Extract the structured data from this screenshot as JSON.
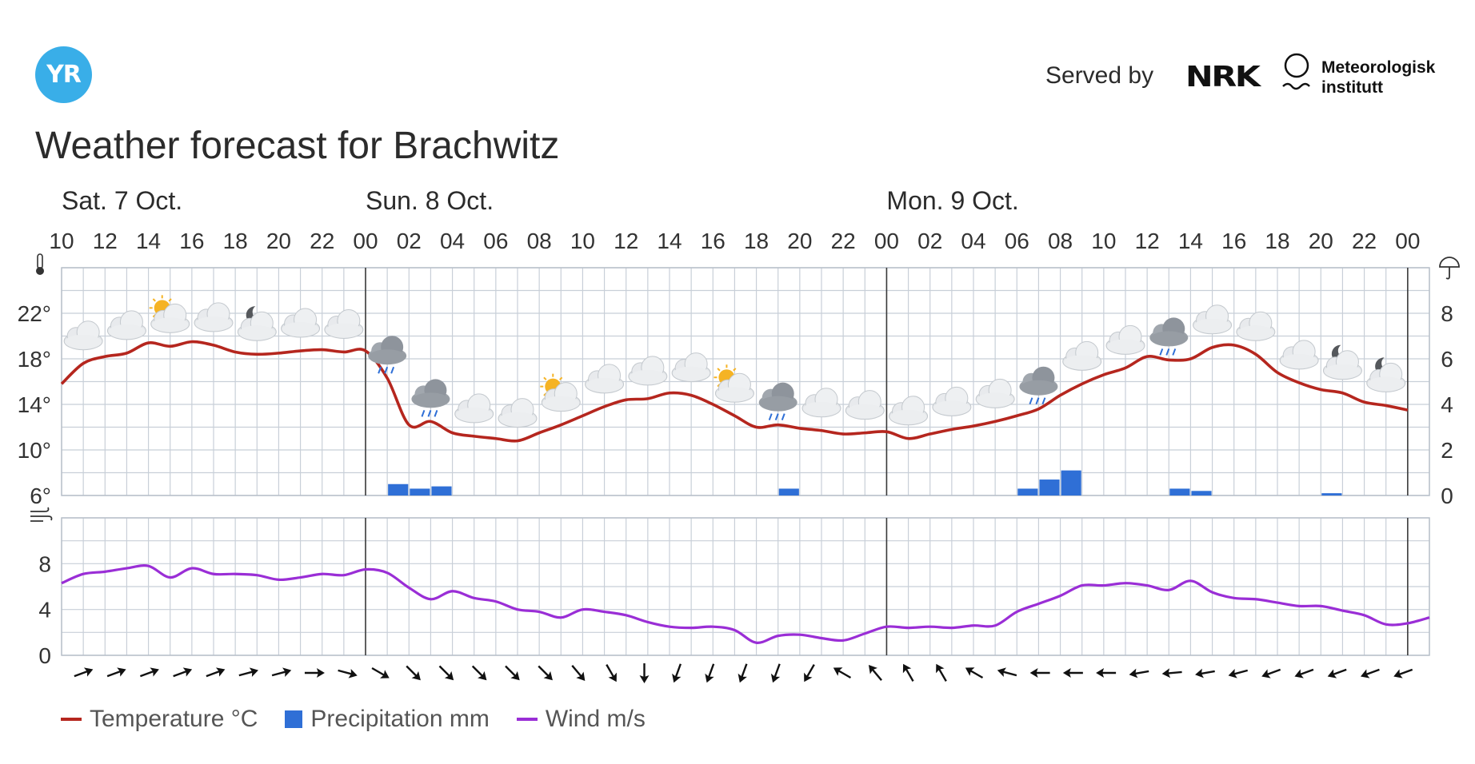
{
  "header": {
    "logo_text": "YR",
    "served_by": "Served by",
    "nrk_text": "NRK",
    "met_line1": "Meteorologisk",
    "met_line2": "institutt"
  },
  "title": "Weather forecast for Brachwitz",
  "colors": {
    "temperature": "#b5261e",
    "precipitation": "#2f6fd6",
    "wind": "#9a2ed6",
    "grid": "#c8cfd8",
    "day_separator": "#3a3a3a"
  },
  "legend": {
    "temperature": "Temperature °C",
    "precipitation": "Precipitation mm",
    "wind": "Wind m/s"
  },
  "chart_data": {
    "type": "line",
    "x_unit": "hours from Sat 7 Oct 10:00",
    "days": [
      {
        "label": "Sat. 7 Oct.",
        "hour": 0
      },
      {
        "label": "Sun. 8 Oct.",
        "hour": 14
      },
      {
        "label": "Mon. 9 Oct.",
        "hour": 38
      }
    ],
    "day_separators": [
      14,
      38,
      62
    ],
    "hour_labels": [
      "10",
      "12",
      "14",
      "16",
      "18",
      "20",
      "22",
      "00",
      "02",
      "04",
      "06",
      "08",
      "10",
      "12",
      "14",
      "16",
      "18",
      "20",
      "22",
      "00",
      "02",
      "04",
      "06",
      "08",
      "10",
      "12",
      "14",
      "16",
      "18",
      "20",
      "22",
      "00"
    ],
    "temperature": {
      "y_range": [
        6,
        26
      ],
      "y_ticks": [
        "6°",
        "10°",
        "14°",
        "18°",
        "22°"
      ],
      "y_tick_values": [
        6,
        10,
        14,
        18,
        22
      ],
      "series": [
        {
          "name": "Temperature °C",
          "values": [
            15.8,
            17.6,
            18.2,
            18.5,
            19.4,
            19.1,
            19.5,
            19.2,
            18.6,
            18.4,
            18.5,
            18.7,
            18.8,
            18.6,
            18.7,
            16.3,
            12.2,
            12.5,
            11.5,
            11.2,
            11.0,
            10.8,
            11.5,
            12.2,
            13.0,
            13.8,
            14.4,
            14.5,
            15.0,
            14.8,
            14.0,
            13.0,
            12.0,
            12.2,
            11.9,
            11.7,
            11.4,
            11.5,
            11.6,
            11.0,
            11.4,
            11.8,
            12.1,
            12.5,
            13.0,
            13.6,
            14.8,
            15.8,
            16.6,
            17.2,
            18.2,
            17.9,
            18.0,
            19.0,
            19.2,
            18.4,
            16.8,
            15.9,
            15.3,
            15.0,
            14.2,
            13.9,
            13.5
          ]
        }
      ]
    },
    "precipitation": {
      "y_range": [
        0,
        10
      ],
      "y_ticks": [
        "0",
        "2",
        "4",
        "6",
        "8"
      ],
      "y_tick_values": [
        0,
        2,
        4,
        6,
        8
      ],
      "bars": [
        {
          "hour": 15,
          "value": 0.5
        },
        {
          "hour": 16,
          "value": 0.3
        },
        {
          "hour": 17,
          "value": 0.4
        },
        {
          "hour": 33,
          "value": 0.3
        },
        {
          "hour": 44,
          "value": 0.3
        },
        {
          "hour": 45,
          "value": 0.7
        },
        {
          "hour": 46,
          "value": 1.1
        },
        {
          "hour": 51,
          "value": 0.3
        },
        {
          "hour": 52,
          "value": 0.2
        },
        {
          "hour": 58,
          "value": 0.1
        }
      ]
    },
    "wind": {
      "y_range": [
        0,
        12
      ],
      "y_ticks": [
        "0",
        "4",
        "8"
      ],
      "y_tick_values": [
        0,
        4,
        8
      ],
      "series": [
        {
          "name": "Wind m/s",
          "values": [
            6.3,
            7.1,
            7.3,
            7.6,
            7.8,
            6.8,
            7.6,
            7.1,
            7.1,
            7.0,
            6.6,
            6.8,
            7.1,
            7.0,
            7.5,
            7.2,
            5.9,
            4.9,
            5.6,
            5.0,
            4.7,
            4.0,
            3.8,
            3.3,
            4.0,
            3.8,
            3.5,
            2.9,
            2.5,
            2.4,
            2.5,
            2.2,
            1.1,
            1.7,
            1.8,
            1.5,
            1.3,
            1.9,
            2.5,
            2.4,
            2.5,
            2.4,
            2.6,
            2.6,
            3.8,
            4.5,
            5.2,
            6.1,
            6.1,
            6.3,
            6.1,
            5.7,
            6.5,
            5.5,
            5.0,
            4.9,
            4.6,
            4.3,
            4.3,
            3.9,
            3.5,
            2.7,
            2.8,
            3.3
          ]
        }
      ],
      "direction_degrees": [
        70,
        70,
        70,
        70,
        70,
        75,
        75,
        90,
        105,
        120,
        135,
        135,
        135,
        135,
        135,
        140,
        150,
        180,
        200,
        200,
        200,
        200,
        210,
        300,
        320,
        330,
        330,
        300,
        285,
        270,
        270,
        270,
        260,
        265,
        260,
        255,
        250,
        250,
        250,
        250,
        250
      ]
    },
    "weather_symbols": [
      {
        "hour": 1,
        "icon": "cloudy-icon"
      },
      {
        "hour": 3,
        "icon": "cloudy-icon"
      },
      {
        "hour": 5,
        "icon": "partly-cloudy-day-icon"
      },
      {
        "hour": 7,
        "icon": "cloudy-icon"
      },
      {
        "hour": 9,
        "icon": "partly-cloudy-night-icon"
      },
      {
        "hour": 11,
        "icon": "cloudy-icon"
      },
      {
        "hour": 13,
        "icon": "cloudy-icon"
      },
      {
        "hour": 15,
        "icon": "rain-icon"
      },
      {
        "hour": 17,
        "icon": "rain-icon"
      },
      {
        "hour": 19,
        "icon": "cloudy-icon"
      },
      {
        "hour": 21,
        "icon": "cloudy-icon"
      },
      {
        "hour": 23,
        "icon": "partly-cloudy-day-icon"
      },
      {
        "hour": 25,
        "icon": "cloudy-icon"
      },
      {
        "hour": 27,
        "icon": "cloudy-icon"
      },
      {
        "hour": 29,
        "icon": "cloudy-icon"
      },
      {
        "hour": 31,
        "icon": "partly-cloudy-day-icon"
      },
      {
        "hour": 33,
        "icon": "rain-icon"
      },
      {
        "hour": 35,
        "icon": "cloudy-icon"
      },
      {
        "hour": 37,
        "icon": "cloudy-icon"
      },
      {
        "hour": 39,
        "icon": "cloudy-icon"
      },
      {
        "hour": 41,
        "icon": "cloudy-icon"
      },
      {
        "hour": 43,
        "icon": "cloudy-icon"
      },
      {
        "hour": 45,
        "icon": "rain-icon"
      },
      {
        "hour": 47,
        "icon": "cloudy-icon"
      },
      {
        "hour": 49,
        "icon": "cloudy-icon"
      },
      {
        "hour": 51,
        "icon": "rain-icon"
      },
      {
        "hour": 53,
        "icon": "cloudy-icon"
      },
      {
        "hour": 55,
        "icon": "cloudy-icon"
      },
      {
        "hour": 57,
        "icon": "cloudy-icon"
      },
      {
        "hour": 59,
        "icon": "partly-cloudy-night-icon"
      },
      {
        "hour": 61,
        "icon": "partly-cloudy-night-icon"
      }
    ],
    "grid": true,
    "legend_position": "bottom-left"
  }
}
